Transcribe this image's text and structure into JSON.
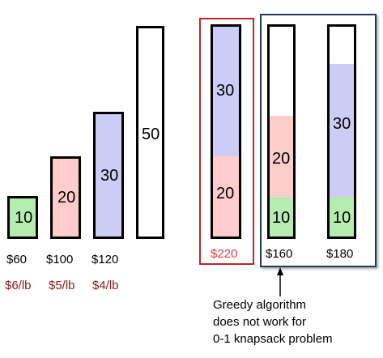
{
  "colors": {
    "green": "#b6ecb0",
    "red": "#ffcccc",
    "blue": "#ccccf5",
    "dark_red": "#8b1a1a",
    "red_text": "#e03b3b",
    "red_frame": "#c22727",
    "navy_frame": "#1f3a5f"
  },
  "items": [
    {
      "weight": "10",
      "price": "$60",
      "rate": "$6/lb"
    },
    {
      "weight": "20",
      "price": "$100",
      "rate": "$5/lb"
    },
    {
      "weight": "30",
      "price": "$120",
      "rate": "$4/lb"
    }
  ],
  "capacity": {
    "weight": "50"
  },
  "solutions": [
    {
      "segments": [
        "30",
        "20"
      ],
      "total": "$220"
    },
    {
      "segments": [
        "20",
        "10"
      ],
      "total": "$160"
    },
    {
      "segments": [
        "30",
        "10"
      ],
      "total": "$180"
    }
  ],
  "note": {
    "line1": "Greedy algorithm",
    "line2": "does not work for",
    "line3": "0-1 knapsack problem"
  }
}
